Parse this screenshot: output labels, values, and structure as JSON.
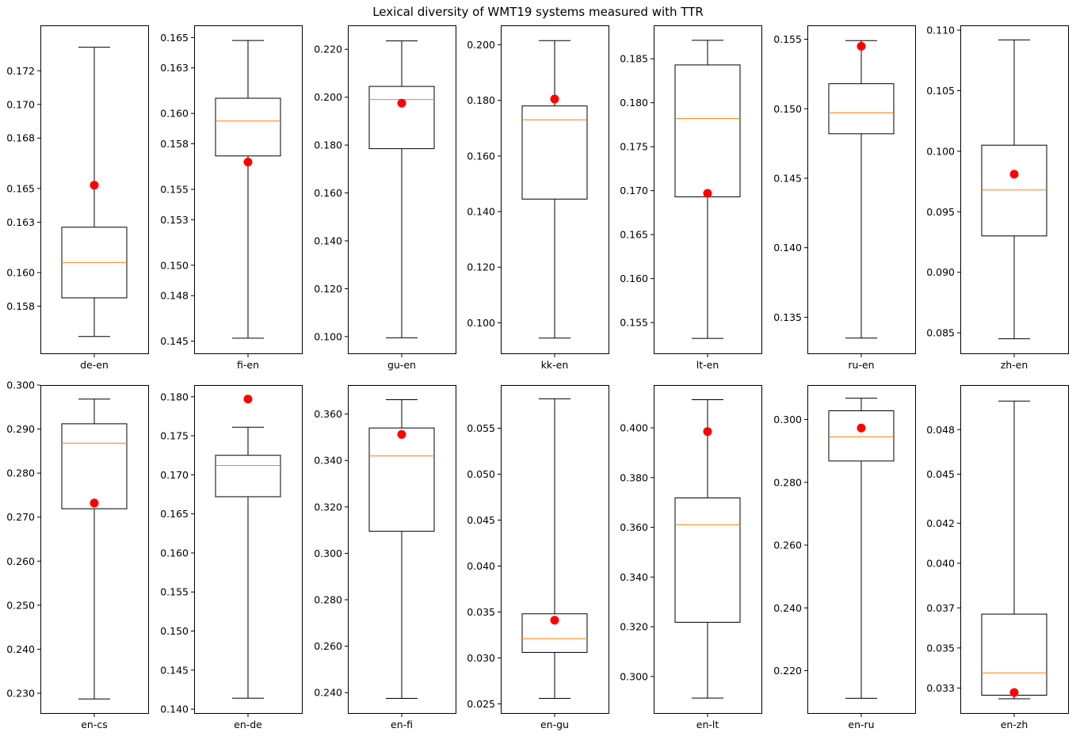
{
  "title": "Lexical diversity of WMT19 systems measured with TTR",
  "colors": {
    "box": "#000000",
    "median": "#ff7f0e",
    "marker": "#ff0000",
    "background": "#ffffff"
  },
  "chart_data": [
    {
      "type": "box",
      "category": "de-en",
      "whisker_low": 0.1562,
      "q1": 0.1585,
      "median": 0.1606,
      "q3": 0.1627,
      "whisker_high": 0.1734,
      "point": 0.1652,
      "ylim": [
        0.1552,
        0.1747
      ],
      "ticks": [
        0.158,
        0.16,
        0.163,
        0.165,
        0.168,
        0.17,
        0.172
      ],
      "tick_labels": [
        "0.158",
        "0.160",
        "0.163",
        "0.165",
        "0.168",
        "0.170",
        "0.172"
      ]
    },
    {
      "type": "box",
      "category": "fi-en",
      "whisker_low": 0.1452,
      "q1": 0.1572,
      "median": 0.1595,
      "q3": 0.161,
      "whisker_high": 0.1648,
      "point": 0.1568,
      "ylim": [
        0.1442,
        0.1658
      ],
      "ticks": [
        0.145,
        0.148,
        0.15,
        0.153,
        0.155,
        0.158,
        0.16,
        0.163,
        0.165
      ],
      "tick_labels": [
        "0.145",
        "0.148",
        "0.150",
        "0.153",
        "0.155",
        "0.158",
        "0.160",
        "0.163",
        "0.165"
      ]
    },
    {
      "type": "box",
      "category": "gu-en",
      "whisker_low": 0.0995,
      "q1": 0.1785,
      "median": 0.199,
      "q3": 0.2045,
      "whisker_high": 0.2235,
      "point": 0.1975,
      "ylim": [
        0.093,
        0.23
      ],
      "ticks": [
        0.1,
        0.12,
        0.14,
        0.16,
        0.18,
        0.2,
        0.22
      ],
      "tick_labels": [
        "0.100",
        "0.120",
        "0.140",
        "0.160",
        "0.180",
        "0.200",
        "0.220"
      ]
    },
    {
      "type": "box",
      "category": "kk-en",
      "whisker_low": 0.0945,
      "q1": 0.1445,
      "median": 0.173,
      "q3": 0.178,
      "whisker_high": 0.2015,
      "point": 0.1805,
      "ylim": [
        0.089,
        0.207
      ],
      "ticks": [
        0.1,
        0.12,
        0.14,
        0.16,
        0.18,
        0.2
      ],
      "tick_labels": [
        "0.100",
        "0.120",
        "0.140",
        "0.160",
        "0.180",
        "0.200"
      ]
    },
    {
      "type": "box",
      "category": "lt-en",
      "whisker_low": 0.1532,
      "q1": 0.1693,
      "median": 0.1782,
      "q3": 0.1843,
      "whisker_high": 0.1871,
      "point": 0.1697,
      "ylim": [
        0.1515,
        0.1888
      ],
      "ticks": [
        0.155,
        0.16,
        0.165,
        0.17,
        0.175,
        0.18,
        0.185
      ],
      "tick_labels": [
        "0.155",
        "0.160",
        "0.165",
        "0.170",
        "0.175",
        "0.180",
        "0.185"
      ]
    },
    {
      "type": "box",
      "category": "ru-en",
      "whisker_low": 0.1335,
      "q1": 0.1482,
      "median": 0.1497,
      "q3": 0.1518,
      "whisker_high": 0.1549,
      "point": 0.1545,
      "ylim": [
        0.1324,
        0.156
      ],
      "ticks": [
        0.135,
        0.14,
        0.145,
        0.15,
        0.155
      ],
      "tick_labels": [
        "0.135",
        "0.140",
        "0.145",
        "0.150",
        "0.155"
      ]
    },
    {
      "type": "box",
      "category": "zh-en",
      "whisker_low": 0.0845,
      "q1": 0.093,
      "median": 0.0968,
      "q3": 0.1005,
      "whisker_high": 0.1092,
      "point": 0.0981,
      "ylim": [
        0.0833,
        0.1104
      ],
      "ticks": [
        0.085,
        0.09,
        0.095,
        0.1,
        0.105,
        0.11
      ],
      "tick_labels": [
        "0.085",
        "0.090",
        "0.095",
        "0.100",
        "0.105",
        "0.110"
      ]
    },
    {
      "type": "box",
      "category": "en-cs",
      "whisker_low": 0.2287,
      "q1": 0.2719,
      "median": 0.2868,
      "q3": 0.2912,
      "whisker_high": 0.2968,
      "point": 0.2732,
      "ylim": [
        0.2255,
        0.3
      ],
      "ticks": [
        0.23,
        0.24,
        0.25,
        0.26,
        0.27,
        0.28,
        0.29,
        0.3
      ],
      "tick_labels": [
        "0.230",
        "0.240",
        "0.250",
        "0.260",
        "0.270",
        "0.280",
        "0.290",
        "0.300"
      ]
    },
    {
      "type": "box",
      "category": "en-de",
      "whisker_low": 0.1414,
      "q1": 0.1672,
      "median": 0.1712,
      "q3": 0.1725,
      "whisker_high": 0.1761,
      "point": 0.1797,
      "ylim": [
        0.1395,
        0.1815
      ],
      "ticks": [
        0.14,
        0.145,
        0.15,
        0.155,
        0.16,
        0.165,
        0.17,
        0.175,
        0.18
      ],
      "tick_labels": [
        "0.140",
        "0.145",
        "0.150",
        "0.155",
        "0.160",
        "0.165",
        "0.170",
        "0.175",
        "0.180"
      ]
    },
    {
      "type": "box",
      "category": "en-fi",
      "whisker_low": 0.2375,
      "q1": 0.3095,
      "median": 0.342,
      "q3": 0.354,
      "whisker_high": 0.3662,
      "point": 0.3512,
      "ylim": [
        0.2312,
        0.3725
      ],
      "ticks": [
        0.24,
        0.26,
        0.28,
        0.3,
        0.32,
        0.34,
        0.36
      ],
      "tick_labels": [
        "0.240",
        "0.260",
        "0.280",
        "0.300",
        "0.320",
        "0.340",
        "0.360"
      ]
    },
    {
      "type": "box",
      "category": "en-gu",
      "whisker_low": 0.0256,
      "q1": 0.0306,
      "median": 0.0321,
      "q3": 0.0348,
      "whisker_high": 0.0582,
      "point": 0.0341,
      "ylim": [
        0.024,
        0.0597
      ],
      "ticks": [
        0.025,
        0.03,
        0.035,
        0.04,
        0.045,
        0.05,
        0.055
      ],
      "tick_labels": [
        "0.025",
        "0.030",
        "0.035",
        "0.040",
        "0.045",
        "0.050",
        "0.055"
      ]
    },
    {
      "type": "box",
      "category": "en-lt",
      "whisker_low": 0.2913,
      "q1": 0.3218,
      "median": 0.361,
      "q3": 0.3718,
      "whisker_high": 0.4113,
      "point": 0.3985,
      "ylim": [
        0.2853,
        0.4172
      ],
      "ticks": [
        0.3,
        0.32,
        0.34,
        0.36,
        0.38,
        0.4
      ],
      "tick_labels": [
        "0.300",
        "0.320",
        "0.340",
        "0.360",
        "0.380",
        "0.400"
      ]
    },
    {
      "type": "box",
      "category": "en-ru",
      "whisker_low": 0.2112,
      "q1": 0.2868,
      "median": 0.2945,
      "q3": 0.3028,
      "whisker_high": 0.3068,
      "point": 0.2973,
      "ylim": [
        0.2065,
        0.311
      ],
      "ticks": [
        0.22,
        0.24,
        0.26,
        0.28,
        0.3
      ],
      "tick_labels": [
        "0.220",
        "0.240",
        "0.260",
        "0.280",
        "0.300"
      ]
    },
    {
      "type": "box",
      "category": "en-zh",
      "whisker_low": 0.0324,
      "q1": 0.0326,
      "median": 0.03385,
      "q3": 0.03715,
      "whisker_high": 0.0491,
      "point": 0.03275,
      "ylim": [
        0.0316,
        0.05
      ],
      "ticks": [
        0.033,
        0.03525,
        0.0375,
        0.04,
        0.04225,
        0.045,
        0.0475
      ],
      "tick_labels": [
        "0.033",
        "0.035",
        "0.037",
        "0.040",
        "0.042",
        "0.045",
        "0.048"
      ]
    }
  ]
}
